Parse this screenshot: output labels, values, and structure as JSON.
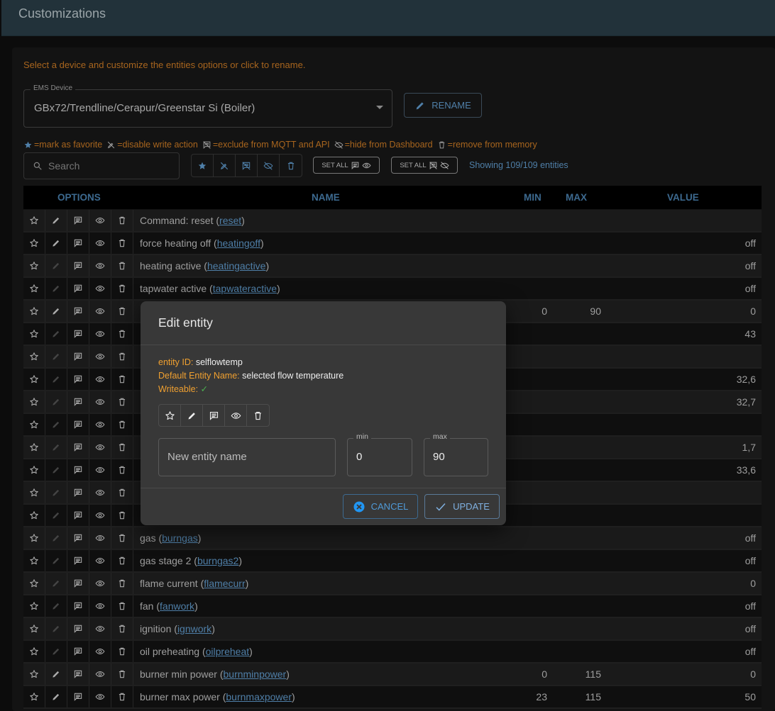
{
  "header": {
    "title": "Customizations"
  },
  "hint": "Select a device and customize the entities options or click to rename.",
  "device_select": {
    "label": "EMS Device",
    "value": "GBx72/Trendline/Cerapur/Greenstar Si (Boiler)"
  },
  "rename_label": "RENAME",
  "legend": [
    {
      "icon": "star-icon",
      "text": "=mark as favorite"
    },
    {
      "icon": "pencil-off-icon",
      "text": "=disable write action"
    },
    {
      "icon": "comment-off-icon",
      "text": "=exclude from MQTT and API"
    },
    {
      "icon": "eye-off-icon",
      "text": "=hide from Dashboard"
    },
    {
      "icon": "trash-icon",
      "text": "=remove from memory"
    }
  ],
  "search": {
    "placeholder": "Search",
    "value": ""
  },
  "set_all_1": "SET ALL",
  "set_all_2": "SET ALL",
  "showing": "Showing 109/109 entities",
  "table": {
    "columns": {
      "options": "OPTIONS",
      "name": "NAME",
      "min": "MIN",
      "max": "MAX",
      "value": "VALUE"
    },
    "rows": [
      {
        "name": "Command: reset",
        "id": "reset",
        "min": "",
        "max": "",
        "value": "",
        "writable": true
      },
      {
        "name": "force heating off",
        "id": "heatingoff",
        "min": "",
        "max": "",
        "value": "off",
        "writable": true
      },
      {
        "name": "heating active",
        "id": "heatingactive",
        "min": "",
        "max": "",
        "value": "off",
        "writable": false
      },
      {
        "name": "tapwater active",
        "id": "tapwateractive",
        "min": "",
        "max": "",
        "value": "off",
        "writable": false
      },
      {
        "name": "",
        "id": "",
        "min": "0",
        "max": "90",
        "value": "0",
        "writable": true
      },
      {
        "name": "",
        "id": "",
        "min": "",
        "max": "",
        "value": "43",
        "writable": false
      },
      {
        "name": "",
        "id": "",
        "min": "",
        "max": "",
        "value": "",
        "writable": false
      },
      {
        "name": "",
        "id": "",
        "min": "",
        "max": "",
        "value": "32,6",
        "writable": false
      },
      {
        "name": "",
        "id": "",
        "min": "",
        "max": "",
        "value": "32,7",
        "writable": false
      },
      {
        "name": "",
        "id": "",
        "min": "",
        "max": "",
        "value": "",
        "writable": false
      },
      {
        "name": "",
        "id": "",
        "min": "",
        "max": "",
        "value": "1,7",
        "writable": false
      },
      {
        "name": "",
        "id": "",
        "min": "",
        "max": "",
        "value": "33,6",
        "writable": false
      },
      {
        "name": "",
        "id": "",
        "min": "",
        "max": "",
        "value": "",
        "writable": false
      },
      {
        "name": "",
        "id": "",
        "min": "",
        "max": "",
        "value": "",
        "writable": false
      },
      {
        "name": "gas",
        "id": "burngas",
        "min": "",
        "max": "",
        "value": "off",
        "writable": false
      },
      {
        "name": "gas stage 2",
        "id": "burngas2",
        "min": "",
        "max": "",
        "value": "off",
        "writable": false
      },
      {
        "name": "flame current",
        "id": "flamecurr",
        "min": "",
        "max": "",
        "value": "0",
        "writable": false
      },
      {
        "name": "fan",
        "id": "fanwork",
        "min": "",
        "max": "",
        "value": "off",
        "writable": false
      },
      {
        "name": "ignition",
        "id": "ignwork",
        "min": "",
        "max": "",
        "value": "off",
        "writable": false
      },
      {
        "name": "oil preheating",
        "id": "oilpreheat",
        "min": "",
        "max": "",
        "value": "off",
        "writable": false
      },
      {
        "name": "burner min power",
        "id": "burnminpower",
        "min": "0",
        "max": "115",
        "value": "0",
        "writable": true
      },
      {
        "name": "burner max power",
        "id": "burnmaxpower",
        "min": "23",
        "max": "115",
        "value": "50",
        "writable": true
      }
    ]
  },
  "modal": {
    "title": "Edit entity",
    "entity_id_label": "entity ID:",
    "entity_id": "selflowtemp",
    "default_name_label": "Default Entity Name:",
    "default_name": "selected flow temperature",
    "writeable_label": "Writeable:",
    "writeable": "✓",
    "name_placeholder": "New entity name",
    "min_label": "min",
    "min_value": "0",
    "max_label": "max",
    "max_value": "90",
    "cancel": "CANCEL",
    "update": "UPDATE"
  },
  "colors": {
    "accent": "#4f7fa8",
    "hint": "#a8651e",
    "modal_key": "#f0a030",
    "check": "#4caf50",
    "cancel_icon": "#2196f3"
  }
}
